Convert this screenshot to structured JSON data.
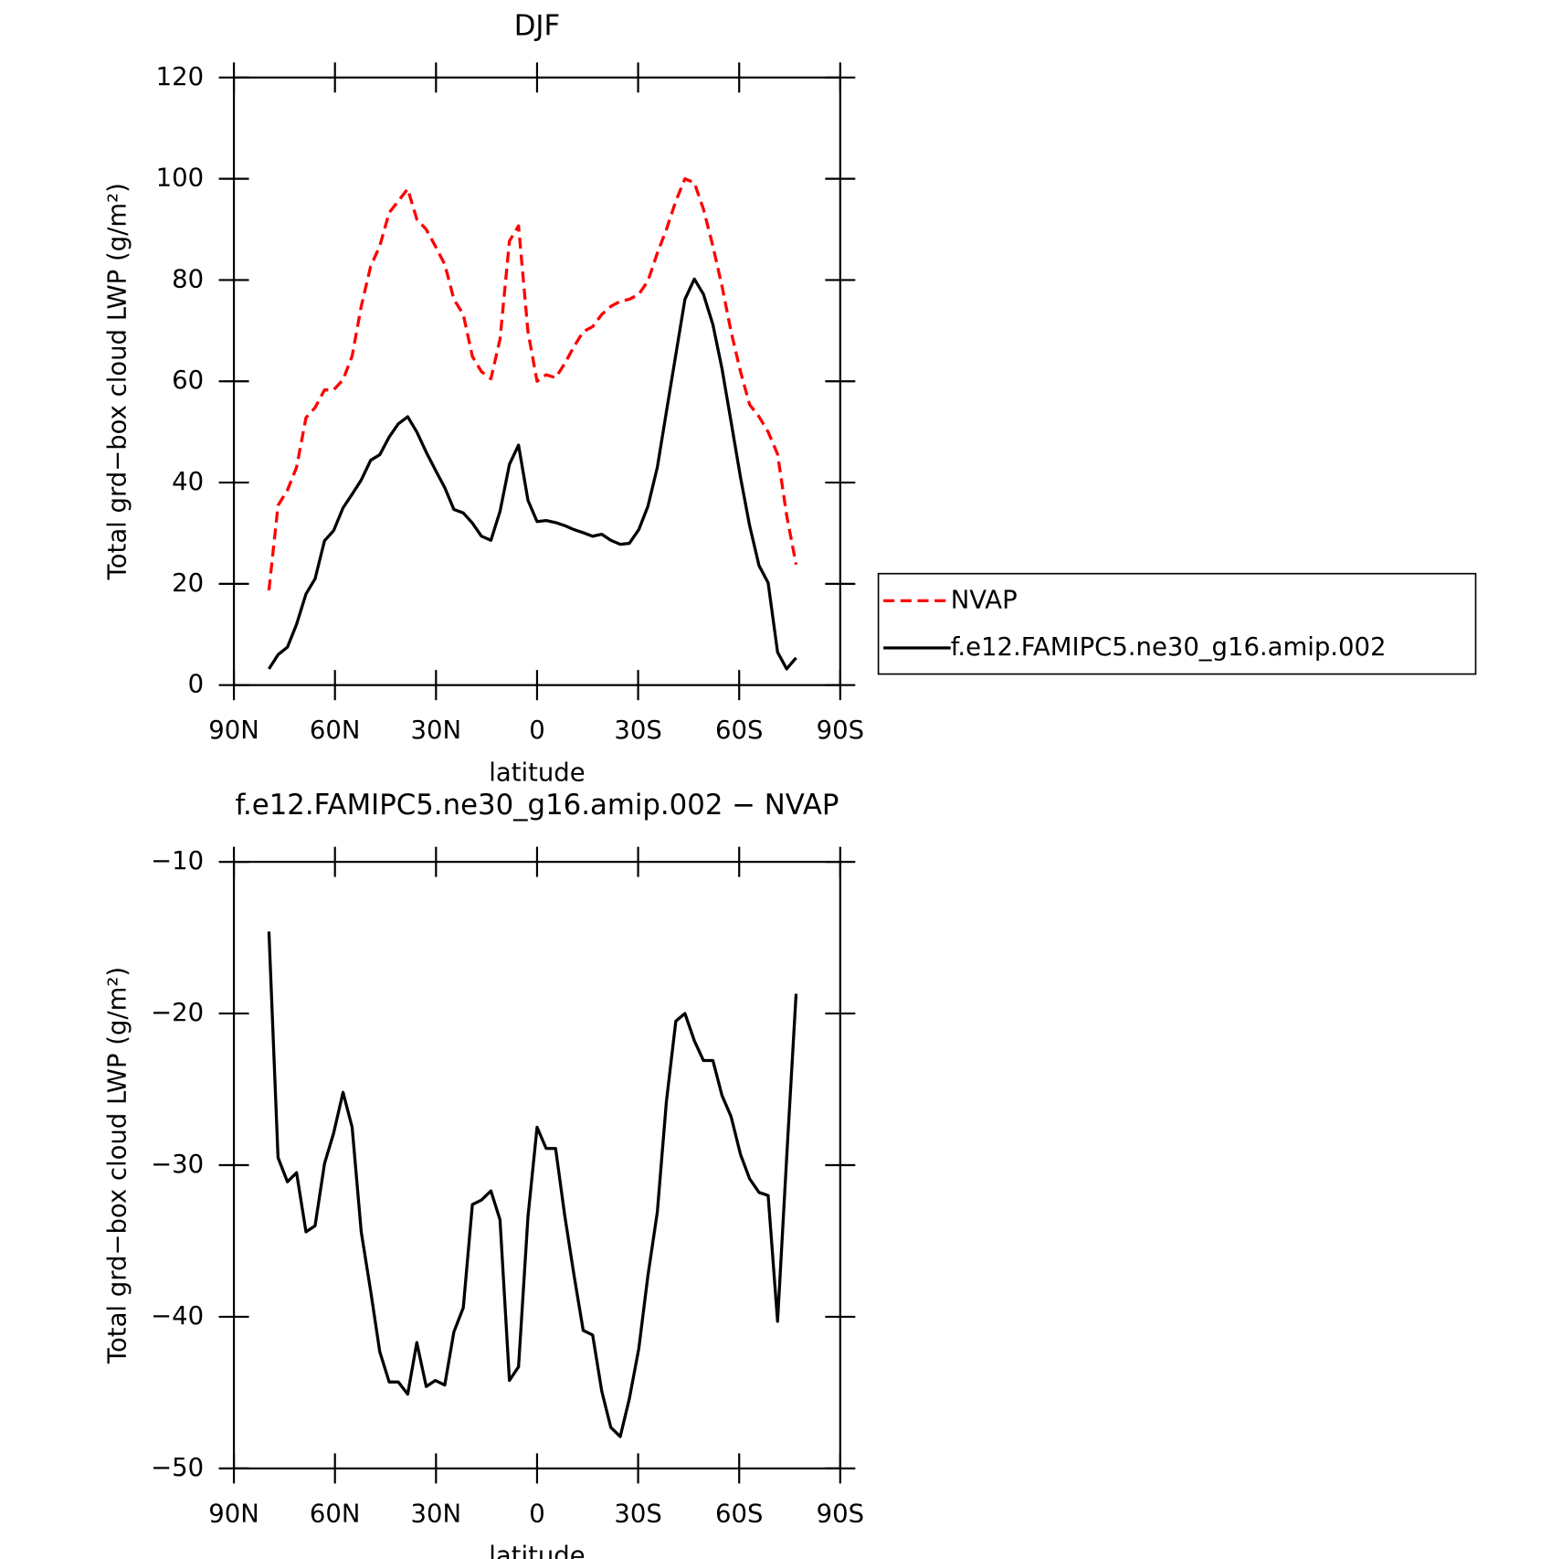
{
  "chart_data": [
    {
      "type": "line",
      "title": "DJF",
      "xlabel": "latitude",
      "ylabel": "Total grd−box cloud LWP (g/m²)",
      "x": [
        79.6,
        76.9,
        74.1,
        71.4,
        68.6,
        65.9,
        63.1,
        60.4,
        57.6,
        54.9,
        52.2,
        49.4,
        46.7,
        43.9,
        41.2,
        38.4,
        35.7,
        32.9,
        30.2,
        27.4,
        24.7,
        21.9,
        19.2,
        16.5,
        13.7,
        11.0,
        8.2,
        5.5,
        2.7,
        0.0,
        -2.7,
        -5.5,
        -8.2,
        -11.0,
        -13.7,
        -16.5,
        -19.2,
        -21.9,
        -24.7,
        -27.4,
        -30.2,
        -32.9,
        -35.7,
        -38.4,
        -41.2,
        -43.9,
        -46.7,
        -49.4,
        -52.2,
        -54.9,
        -57.6,
        -60.4,
        -63.1,
        -65.9,
        -68.6,
        -71.4,
        -74.1,
        -76.9
      ],
      "series": [
        {
          "name": "NVAP",
          "color": "#ff0000",
          "dashed": true,
          "values": [
            18.7,
            35.5,
            38.5,
            43,
            52.8,
            54.8,
            58.3,
            58.3,
            60.3,
            65,
            74.8,
            82.7,
            86.7,
            93.3,
            95.6,
            98,
            92,
            90,
            86.7,
            83.1,
            76.2,
            73.2,
            64.9,
            61.9,
            60.5,
            68.3,
            87.7,
            90.7,
            69.8,
            60,
            61.3,
            60.7,
            63.5,
            66.9,
            69.8,
            70.8,
            73.2,
            74.8,
            75.8,
            76.2,
            77.2,
            79.8,
            85.3,
            90,
            95.6,
            100,
            99.2,
            94,
            86.7,
            78.8,
            69.8,
            61.9,
            55.4,
            53,
            50,
            45.6,
            33.5,
            23.8
          ]
        },
        {
          "name": "f.e12.FAMIPC5.ne30_g16.amip.002",
          "color": "#000000",
          "dashed": false,
          "values": [
            3.2,
            6,
            7.5,
            12,
            18,
            21,
            28.5,
            30.5,
            35,
            37.7,
            40.5,
            44.4,
            45.5,
            49,
            51.6,
            53,
            50,
            46,
            42.5,
            39,
            34.7,
            34,
            32,
            29.4,
            28.6,
            34.3,
            43.6,
            47.4,
            36.5,
            32.3,
            32.5,
            32.1,
            31.5,
            30.7,
            30.1,
            29.4,
            29.8,
            28.6,
            27.8,
            28,
            30.7,
            35.3,
            43,
            54,
            65.3,
            76.2,
            80.2,
            77.2,
            71.2,
            62.5,
            52,
            41,
            31.5,
            23.6,
            20.2,
            6.5,
            3.2,
            5.4
          ]
        }
      ],
      "xlim": [
        90,
        -90
      ],
      "xticks": [
        {
          "value": 90,
          "label": "90N"
        },
        {
          "value": 60,
          "label": "60N"
        },
        {
          "value": 30,
          "label": "30N"
        },
        0,
        {
          "value": -30,
          "label": "30S"
        },
        {
          "value": -60,
          "label": "60S"
        },
        {
          "value": -90,
          "label": "90S"
        }
      ],
      "ylim": [
        0,
        120
      ],
      "yticks": [
        0,
        20,
        40,
        60,
        80,
        100,
        120
      ],
      "legend": "right"
    },
    {
      "type": "line",
      "title": "f.e12.FAMIPC5.ne30_g16.amip.002 − NVAP",
      "xlabel": "latitude",
      "ylabel": "Total grd−box cloud LWP (g/m²)",
      "x": [
        79.6,
        76.9,
        74.1,
        71.4,
        68.6,
        65.9,
        63.1,
        60.4,
        57.6,
        54.9,
        52.2,
        49.4,
        46.7,
        43.9,
        41.2,
        38.4,
        35.7,
        32.9,
        30.2,
        27.4,
        24.7,
        21.9,
        19.2,
        16.5,
        13.7,
        11.0,
        8.2,
        5.5,
        2.7,
        0.0,
        -2.7,
        -5.5,
        -8.2,
        -11.0,
        -13.7,
        -16.5,
        -19.2,
        -21.9,
        -24.7,
        -27.4,
        -30.2,
        -32.9,
        -35.7,
        -38.4,
        -41.2,
        -43.9,
        -46.7,
        -49.4,
        -52.2,
        -54.9,
        -57.6,
        -60.4,
        -63.1,
        -65.9,
        -68.6,
        -71.4,
        -74.1,
        -76.9
      ],
      "series": [
        {
          "color": "#000000",
          "dashed": false,
          "values": [
            -14.6,
            -29.5,
            -31.1,
            -30.5,
            -34.4,
            -34,
            -29.9,
            -27.9,
            -25.2,
            -27.5,
            -34.4,
            -38.3,
            -42.3,
            -44.3,
            -44.3,
            -45.1,
            -41.7,
            -44.6,
            -44.2,
            -44.5,
            -41,
            -39.4,
            -32.6,
            -32.3,
            -31.7,
            -33.6,
            -44.2,
            -43.3,
            -33.4,
            -27.5,
            -28.9,
            -28.9,
            -33.3,
            -37.3,
            -40.9,
            -41.2,
            -44.9,
            -47.3,
            -47.9,
            -45.4,
            -42.1,
            -37.3,
            -33.1,
            -25.8,
            -20.5,
            -20,
            -21.8,
            -23.1,
            -23.1,
            -25.4,
            -26.8,
            -29.3,
            -30.9,
            -31.8,
            -32,
            -40.3,
            -29.5,
            -18.7
          ]
        }
      ],
      "xlim": [
        90,
        -90
      ],
      "xticks": [
        {
          "value": 90,
          "label": "90N"
        },
        {
          "value": 60,
          "label": "60N"
        },
        {
          "value": 30,
          "label": "30N"
        },
        0,
        {
          "value": -30,
          "label": "30S"
        },
        {
          "value": -60,
          "label": "60S"
        },
        {
          "value": -90,
          "label": "90S"
        }
      ],
      "ylim": [
        -50,
        -10
      ],
      "yticks": [
        {
          "value": -50,
          "label": "−50"
        },
        {
          "value": -40,
          "label": "−40"
        },
        {
          "value": -30,
          "label": "−30"
        },
        {
          "value": -20,
          "label": "−20"
        },
        {
          "value": -10,
          "label": "−10"
        }
      ]
    }
  ]
}
